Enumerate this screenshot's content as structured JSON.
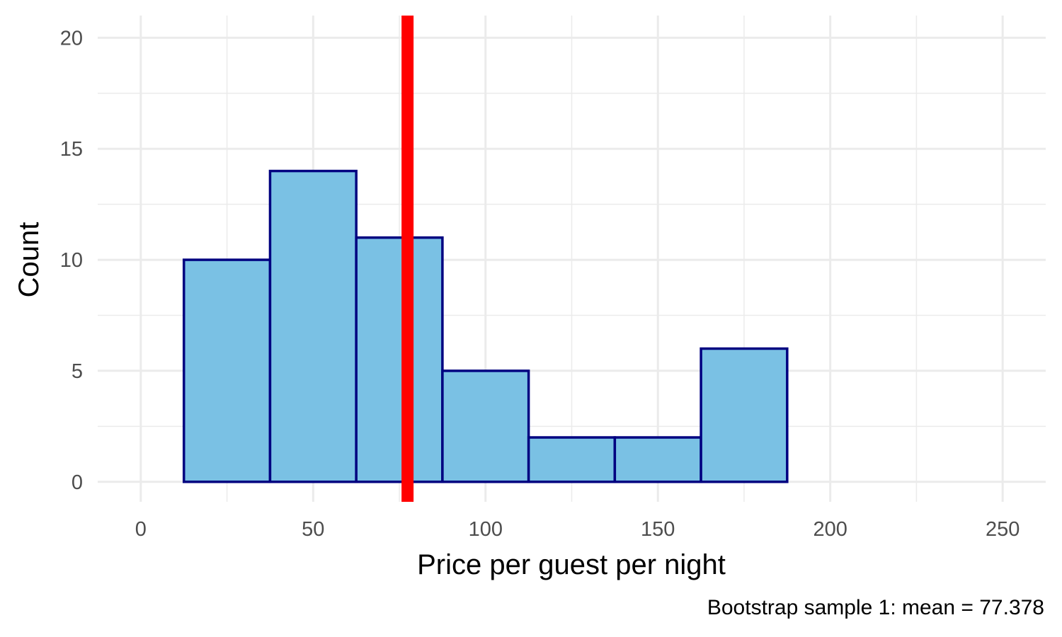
{
  "chart_data": {
    "type": "bar",
    "subtype": "histogram",
    "bins": [
      {
        "x0": 12.5,
        "x1": 37.5,
        "count": 10
      },
      {
        "x0": 37.5,
        "x1": 62.5,
        "count": 14
      },
      {
        "x0": 62.5,
        "x1": 87.5,
        "count": 11
      },
      {
        "x0": 87.5,
        "x1": 112.5,
        "count": 5
      },
      {
        "x0": 112.5,
        "x1": 137.5,
        "count": 2
      },
      {
        "x0": 137.5,
        "x1": 162.5,
        "count": 2
      },
      {
        "x0": 162.5,
        "x1": 187.5,
        "count": 6
      },
      {
        "x0": 187.5,
        "x1": 212.5,
        "count": 0
      },
      {
        "x0": 212.5,
        "x1": 237.5,
        "count": 0
      }
    ],
    "mean_line": {
      "value": 77.378
    },
    "xlabel": "Price per guest per night",
    "ylabel": "Count",
    "caption": "Bootstrap sample 1: mean = 77.378",
    "xlim": [
      -12.5,
      262.5
    ],
    "ylim": [
      -0.9,
      21
    ],
    "x_ticks": [
      0,
      50,
      100,
      150,
      200,
      250
    ],
    "x_tick_labels": [
      "0",
      "50",
      "100",
      "150",
      "200",
      "250"
    ],
    "y_ticks": [
      0,
      5,
      10,
      15,
      20
    ],
    "y_tick_labels": [
      "0",
      "5",
      "10",
      "15",
      "20"
    ],
    "x_minor_ticks": [
      25,
      75,
      125,
      175,
      225
    ],
    "y_minor_ticks": [
      2.5,
      7.5,
      12.5,
      17.5
    ],
    "grid": true,
    "colors": {
      "bar_fill": "#7ac1e4",
      "bar_stroke": "#000080",
      "mean_line": "#ff0000",
      "grid": "#ebebeb",
      "tick_text": "#4d4d4d"
    }
  }
}
